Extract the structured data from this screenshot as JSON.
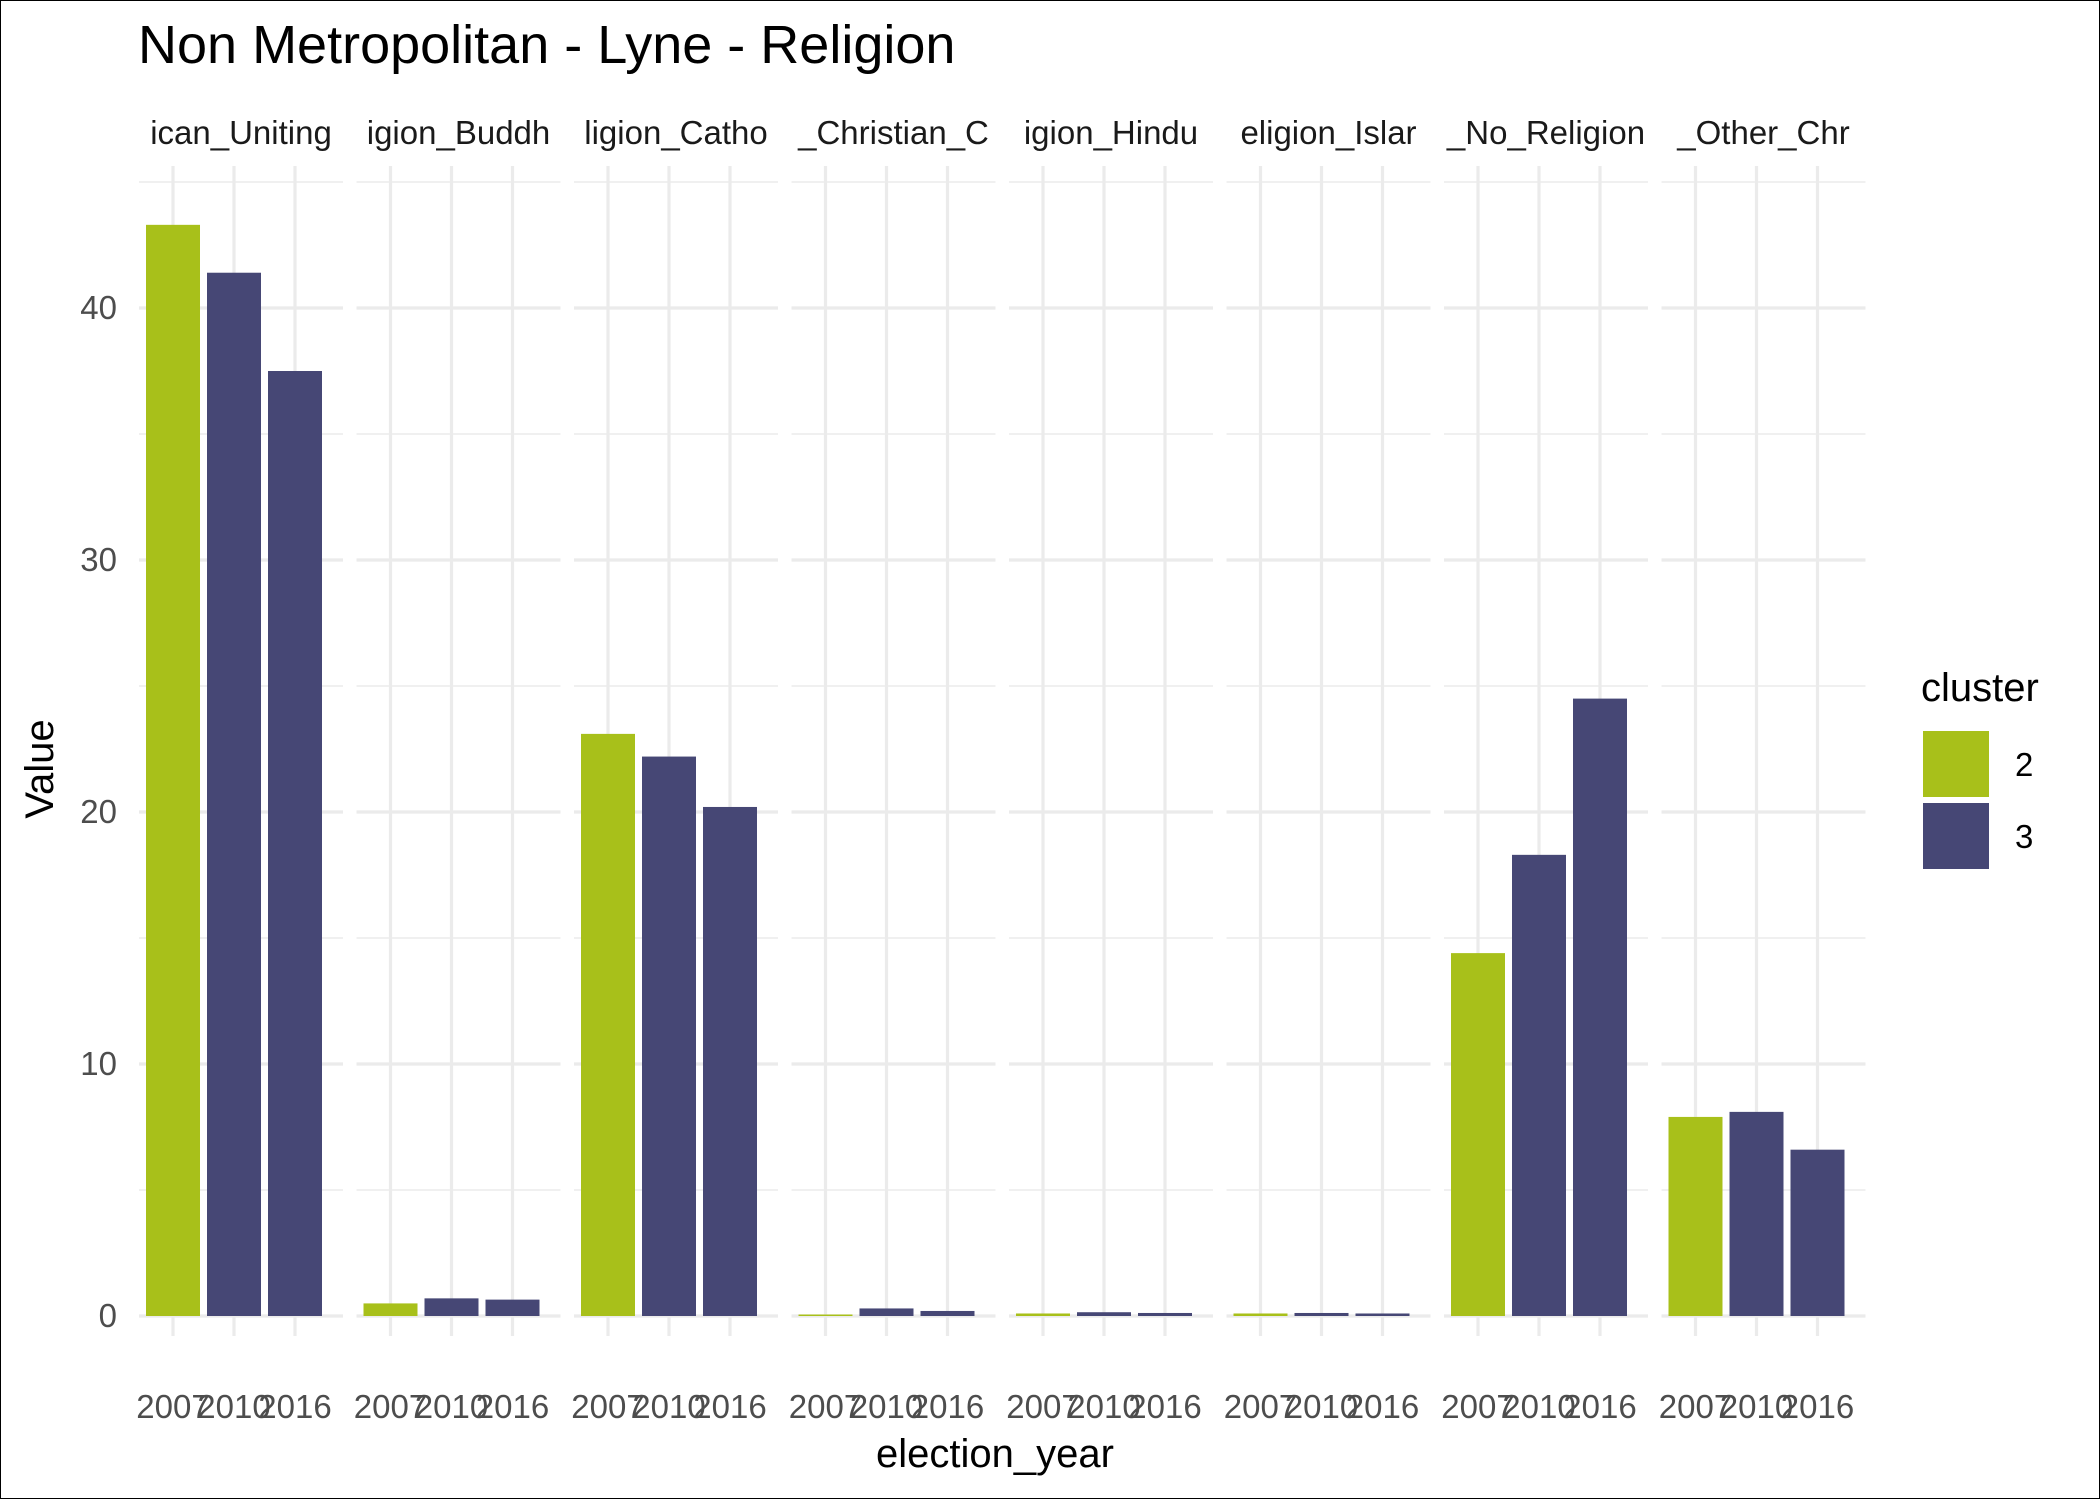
{
  "chart_data": {
    "type": "bar",
    "title": "Non Metropolitan - Lyne - Religion",
    "xlabel": "election_year",
    "ylabel": "Value",
    "ylim": [
      0,
      45
    ],
    "y_ticks": [
      0,
      10,
      20,
      30,
      40
    ],
    "grid": true,
    "legend": {
      "title": "cluster",
      "position": "right",
      "entries": [
        {
          "label": "2",
          "color": "#a8c01a"
        },
        {
          "label": "3",
          "color": "#464775"
        }
      ]
    },
    "categories": [
      "2007",
      "2010",
      "2016"
    ],
    "facets": [
      {
        "strip_label": "ican_Uniting",
        "values": [
          43.3,
          41.4,
          37.5
        ],
        "cluster": [
          "2",
          "3",
          "3"
        ]
      },
      {
        "strip_label": "igion_Buddh",
        "values": [
          0.5,
          0.7,
          0.65
        ],
        "cluster": [
          "2",
          "3",
          "3"
        ]
      },
      {
        "strip_label": "ligion_Catho",
        "values": [
          23.1,
          22.2,
          20.2
        ],
        "cluster": [
          "2",
          "3",
          "3"
        ]
      },
      {
        "strip_label": "_Christian_C",
        "values": [
          0.05,
          0.3,
          0.2
        ],
        "cluster": [
          "2",
          "3",
          "3"
        ]
      },
      {
        "strip_label": "igion_Hindu",
        "values": [
          0.1,
          0.15,
          0.12
        ],
        "cluster": [
          "2",
          "3",
          "3"
        ]
      },
      {
        "strip_label": "eligion_Islar",
        "values": [
          0.1,
          0.12,
          0.1
        ],
        "cluster": [
          "2",
          "3",
          "3"
        ]
      },
      {
        "strip_label": "_No_Religion",
        "values": [
          14.4,
          18.3,
          24.5
        ],
        "cluster": [
          "2",
          "3",
          "3"
        ]
      },
      {
        "strip_label": "_Other_Chr",
        "values": [
          7.9,
          8.1,
          6.6
        ],
        "cluster": [
          "2",
          "3",
          "3"
        ]
      }
    ]
  }
}
